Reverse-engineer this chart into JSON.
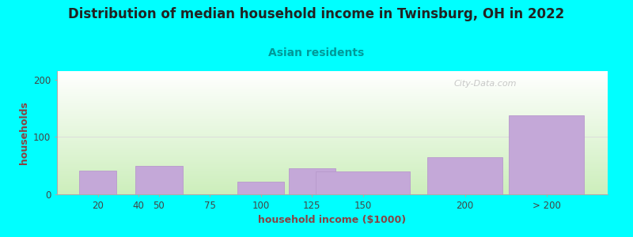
{
  "title": "Distribution of median household income in Twinsburg, OH in 2022",
  "subtitle": "Asian residents",
  "xlabel": "household income ($1000)",
  "ylabel": "households",
  "background_color": "#00FFFF",
  "bar_color": "#c4a8d8",
  "bar_edge_color": "#b899cc",
  "plot_bg_top": "#ffffff",
  "plot_bg_bottom": "#cceebb",
  "categories": [
    "20",
    "40",
    "50",
    "75",
    "100",
    "125",
    "150",
    "200",
    "> 200"
  ],
  "x_positions": [
    20,
    40,
    50,
    75,
    100,
    125,
    150,
    200,
    240
  ],
  "bar_widths": [
    20,
    10,
    25,
    25,
    25,
    25,
    50,
    40,
    40
  ],
  "values": [
    42,
    0,
    50,
    0,
    22,
    45,
    40,
    65,
    138
  ],
  "tick_positions": [
    20,
    40,
    50,
    75,
    100,
    125,
    150,
    200,
    240
  ],
  "tick_labels": [
    "20",
    "40",
    "50",
    "75",
    "100",
    "125",
    "150",
    "200",
    "> 200"
  ],
  "yticks": [
    0,
    100,
    200
  ],
  "ylim": [
    0,
    215
  ],
  "xlim": [
    0,
    270
  ],
  "watermark": "City-Data.com",
  "title_fontsize": 12,
  "subtitle_fontsize": 10,
  "axis_label_fontsize": 9,
  "tick_fontsize": 8.5
}
